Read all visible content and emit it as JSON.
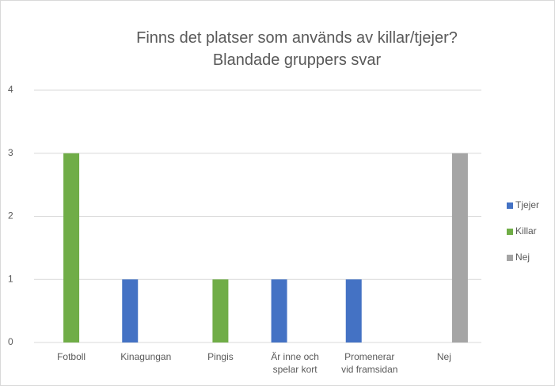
{
  "chart_data": {
    "type": "bar",
    "title": "Finns det platser som används av killar/tjejer? Blandade gruppers svar",
    "categories": [
      "Fotboll",
      "Kinagungan",
      "Pingis",
      "Är inne och spelar kort",
      "Promenerar vid framsidan",
      "Nej"
    ],
    "series": [
      {
        "name": "Tjejer",
        "color": "#4472c4",
        "values": [
          null,
          1,
          null,
          1,
          1,
          null
        ]
      },
      {
        "name": "Killar",
        "color": "#70ad47",
        "values": [
          3,
          null,
          1,
          null,
          null,
          null
        ]
      },
      {
        "name": "Nej",
        "color": "#a5a5a5",
        "values": [
          null,
          null,
          null,
          null,
          null,
          3
        ]
      }
    ],
    "ylim": [
      0,
      4
    ],
    "yticks": [
      0,
      1,
      2,
      3,
      4
    ],
    "grid": true,
    "legend": "right"
  }
}
